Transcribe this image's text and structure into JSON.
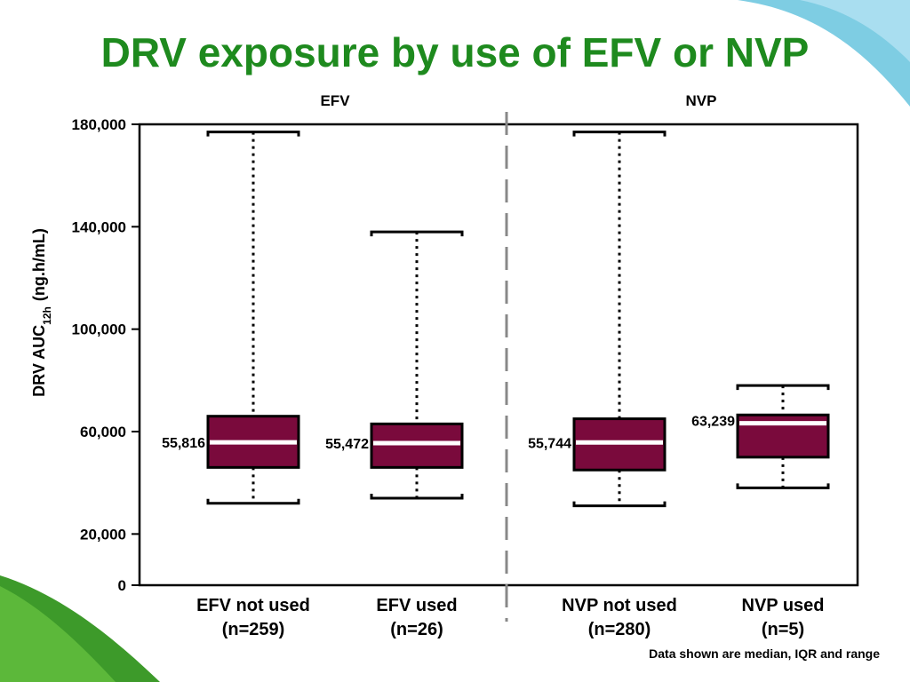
{
  "slide": {
    "title": "DRV exposure by use of EFV or NVP",
    "footnote": "Data shown are median, IQR and range"
  },
  "colors": {
    "title": "#1e8a1e",
    "box_fill": "#7a0a3c",
    "median_line": "#ffffff",
    "divider": "#888888",
    "deco_green": "#3d9a2a",
    "deco_blue": "#7ecde3"
  },
  "chart_data": {
    "type": "box",
    "title": "DRV exposure by use of EFV or NVP",
    "ylabel": "DRV AUC",
    "ylabel_sub": "12h",
    "ylabel_unit": "(ng.h/mL)",
    "ylim": [
      0,
      180000
    ],
    "yticks": [
      {
        "value": 0,
        "label": "0"
      },
      {
        "value": 20000,
        "label": "20,000"
      },
      {
        "value": 60000,
        "label": "60,000"
      },
      {
        "value": 100000,
        "label": "100,000"
      },
      {
        "value": 140000,
        "label": "140,000"
      },
      {
        "value": 180000,
        "label": "180,000"
      }
    ],
    "groups": [
      {
        "label": "EFV",
        "boxes": [
          0,
          1
        ]
      },
      {
        "label": "NVP",
        "boxes": [
          2,
          3
        ]
      }
    ],
    "boxes": [
      {
        "label_line1": "EFV not used",
        "label_line2": "(n=259)",
        "min": 32000,
        "q1": 46000,
        "median": 55816,
        "q3": 66000,
        "max": 177000,
        "median_label": "55,816",
        "median_label_side": "left"
      },
      {
        "label_line1": "EFV used",
        "label_line2": "(n=26)",
        "min": 34000,
        "q1": 46000,
        "median": 55472,
        "q3": 63000,
        "max": 138000,
        "median_label": "55,472",
        "median_label_side": "left"
      },
      {
        "label_line1": "NVP not used",
        "label_line2": "(n=280)",
        "min": 31000,
        "q1": 45000,
        "median": 55744,
        "q3": 65000,
        "max": 177000,
        "median_label": "55,744",
        "median_label_side": "left"
      },
      {
        "label_line1": "NVP used",
        "label_line2": "(n=5)",
        "min": 38000,
        "q1": 50000,
        "median": 63239,
        "q3": 66500,
        "max": 78000,
        "median_label": "63,239",
        "median_label_side": "above-left"
      }
    ],
    "whisker_style": "dotted",
    "grid": false
  }
}
